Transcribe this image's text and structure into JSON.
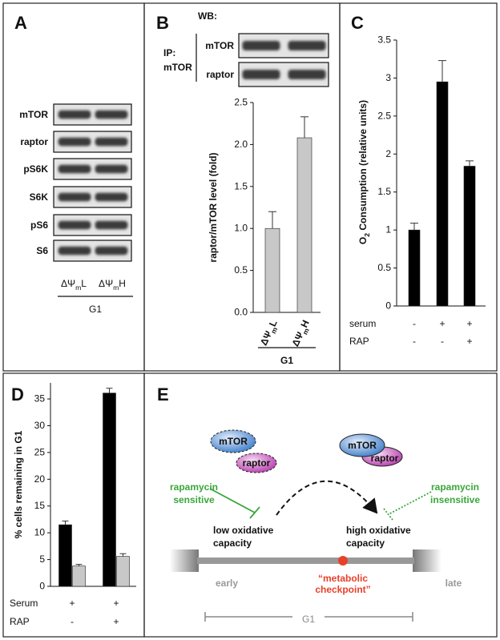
{
  "panel_labels": [
    "A",
    "B",
    "C",
    "D",
    "E"
  ],
  "panel_a": {
    "rows": [
      "mTOR",
      "raptor",
      "pS6K",
      "S6K",
      "pS6",
      "S6"
    ],
    "lanes": [
      [
        "ΔΨ",
        "m",
        "L"
      ],
      [
        "ΔΨ",
        "m",
        "H"
      ]
    ],
    "group": "G1"
  },
  "panel_b_blot": {
    "wb": "WB:",
    "ip": [
      "IP:",
      "mTOR"
    ],
    "rows": [
      "mTOR",
      "raptor"
    ]
  },
  "chart_data": [
    {
      "type": "bar",
      "ylabel": "raptor/mTOR level (fold)",
      "categories": [
        [
          "ΔΨ",
          "m",
          "L"
        ],
        [
          "ΔΨ",
          "m",
          "H"
        ]
      ],
      "values": [
        1.0,
        2.08
      ],
      "errors": [
        0.2,
        0.25
      ],
      "color": "#c8c8c8",
      "ylim": [
        0,
        2.5
      ],
      "yticks": [
        {
          "value": 0,
          "label": "0.0"
        },
        0.5,
        {
          "value": 1,
          "label": "1.0"
        },
        1.5,
        {
          "value": 2,
          "label": "2.0"
        },
        2.5
      ],
      "group": "G1"
    },
    {
      "type": "bar",
      "ylabel": [
        "O",
        "2",
        " Consumption (relative units)"
      ],
      "values": [
        1,
        2.95,
        1.84
      ],
      "errors": [
        0.09,
        0.28,
        0.07
      ],
      "color": "#000000",
      "ylim": [
        0,
        3.5
      ],
      "yticks": [
        0,
        0.5,
        1,
        1.5,
        2,
        2.5,
        3,
        3.5
      ],
      "conditions": [
        {
          "name": "serum",
          "values": [
            "-",
            "+",
            "+"
          ]
        },
        {
          "name": "RAP",
          "values": [
            "-",
            "-",
            "+"
          ]
        }
      ]
    },
    {
      "type": "bar",
      "ylabel": "% cells remaining in G1",
      "series": [
        {
          "color": "#000000",
          "values": [
            11.5,
            36.1
          ],
          "errors": [
            0.7,
            0.9
          ]
        },
        {
          "color": "#c8c8c8",
          "values": [
            3.8,
            5.6
          ],
          "errors": [
            0.3,
            0.5
          ]
        }
      ],
      "ylim": [
        0,
        38
      ],
      "yticks": [
        0,
        5,
        10,
        15,
        20,
        25,
        30,
        35
      ],
      "conditions": [
        {
          "name": "Serum",
          "values": [
            "+",
            "+"
          ]
        },
        {
          "name": "RAP",
          "values": [
            "-",
            "+"
          ]
        }
      ]
    }
  ],
  "panel_e": {
    "mtor": "mTOR",
    "raptor": "raptor",
    "sensitive": [
      "rapamycin",
      "sensitive"
    ],
    "insensitive": [
      "rapamycin",
      "insensitive"
    ],
    "low": [
      "low oxidative",
      "capacity"
    ],
    "high": [
      "high oxidative",
      "capacity"
    ],
    "early": "early",
    "checkpoint": [
      "“metabolic",
      "checkpoint”"
    ],
    "late": "late",
    "g1": "G1"
  }
}
